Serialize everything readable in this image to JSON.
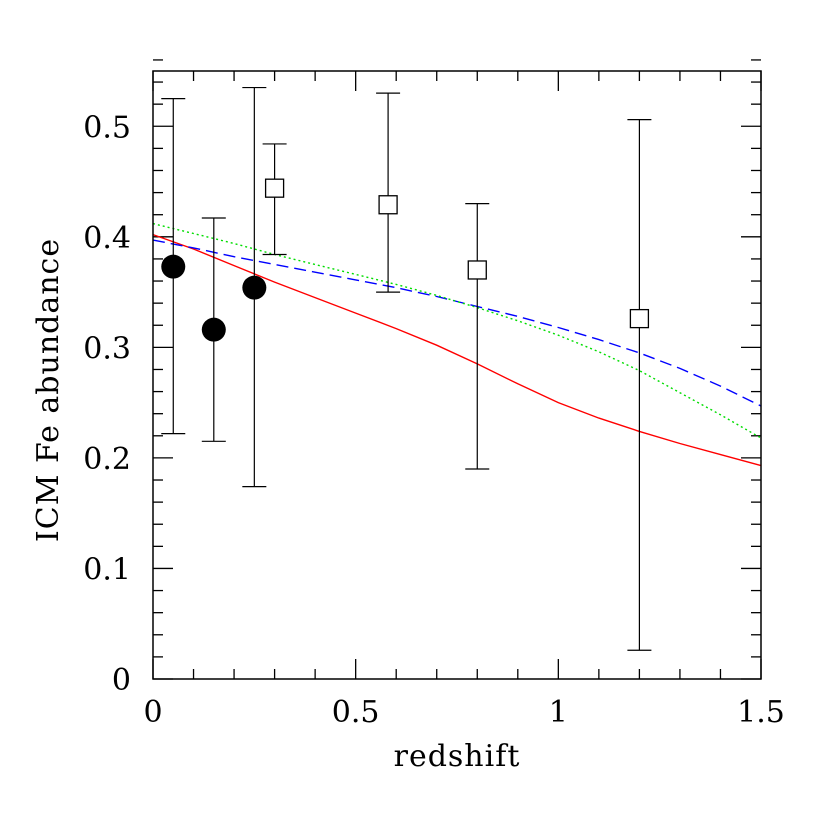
{
  "chart_data": {
    "type": "scatter",
    "title": "",
    "xlabel": "redshift",
    "ylabel": "ICM Fe abundance",
    "xlim": [
      0,
      1.5
    ],
    "ylim": [
      0,
      0.55
    ],
    "x_ticks": [
      0,
      0.5,
      1,
      1.5
    ],
    "x_tick_labels": [
      "0",
      "0.5",
      "1",
      "1.5"
    ],
    "y_ticks": [
      0,
      0.1,
      0.2,
      0.3,
      0.4,
      0.5
    ],
    "y_tick_labels": [
      "0",
      "0.1",
      "0.2",
      "0.3",
      "0.4",
      "0.5"
    ],
    "x_minor_step": 0.1,
    "y_minor_step": 0.02,
    "grid": false,
    "legend": "none",
    "points": [
      {
        "marker": "filled-circle",
        "data": [
          {
            "x": 0.05,
            "y": 0.373,
            "ylow": 0.222,
            "yhigh": 0.525
          },
          {
            "x": 0.15,
            "y": 0.316,
            "ylow": 0.215,
            "yhigh": 0.417
          },
          {
            "x": 0.25,
            "y": 0.354,
            "ylow": 0.174,
            "yhigh": 0.535
          }
        ]
      },
      {
        "marker": "open-square",
        "data": [
          {
            "x": 0.3,
            "y": 0.444,
            "ylow": 0.384,
            "yhigh": 0.484
          },
          {
            "x": 0.58,
            "y": 0.429,
            "ylow": 0.35,
            "yhigh": 0.53
          },
          {
            "x": 0.8,
            "y": 0.37,
            "ylow": 0.19,
            "yhigh": 0.43
          },
          {
            "x": 1.2,
            "y": 0.326,
            "ylow": 0.026,
            "yhigh": 0.506
          }
        ]
      }
    ],
    "curves": [
      {
        "style": "solid",
        "color": "#ff0000",
        "x": [
          0,
          0.1,
          0.2,
          0.3,
          0.4,
          0.5,
          0.6,
          0.7,
          0.8,
          0.9,
          1.0,
          1.1,
          1.2,
          1.3,
          1.4,
          1.5
        ],
        "y": [
          0.402,
          0.389,
          0.374,
          0.359,
          0.345,
          0.331,
          0.317,
          0.302,
          0.285,
          0.267,
          0.25,
          0.236,
          0.224,
          0.213,
          0.203,
          0.193
        ]
      },
      {
        "style": "dashed",
        "color": "#0000ff",
        "x": [
          0,
          0.1,
          0.2,
          0.3,
          0.4,
          0.5,
          0.6,
          0.7,
          0.8,
          0.9,
          1.0,
          1.1,
          1.2,
          1.3,
          1.4,
          1.5
        ],
        "y": [
          0.397,
          0.39,
          0.382,
          0.375,
          0.368,
          0.361,
          0.354,
          0.346,
          0.337,
          0.328,
          0.318,
          0.307,
          0.295,
          0.281,
          0.265,
          0.247
        ]
      },
      {
        "style": "dotted",
        "color": "#00dd00",
        "x": [
          0,
          0.1,
          0.2,
          0.3,
          0.4,
          0.5,
          0.6,
          0.7,
          0.8,
          0.9,
          1.0,
          1.1,
          1.2,
          1.3,
          1.4,
          1.5
        ],
        "y": [
          0.412,
          0.403,
          0.394,
          0.384,
          0.375,
          0.366,
          0.357,
          0.347,
          0.336,
          0.324,
          0.311,
          0.296,
          0.279,
          0.259,
          0.239,
          0.218
        ]
      }
    ]
  }
}
